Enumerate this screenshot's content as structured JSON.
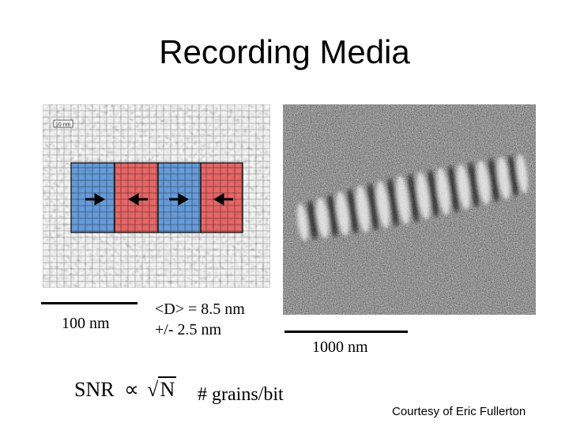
{
  "slide": {
    "title": "Recording Media",
    "scale_bar_left": "100 nm",
    "grain_size_line1": "<D> = 8.5 nm",
    "grain_size_line2": "+/- 2.5 nm",
    "scale_bar_right": "1000 nm",
    "snr_label": "SNR",
    "proportional_symbol": "∝",
    "sqrt_variable": "N",
    "grains_per_bit": "# grains/bit",
    "credit": "Courtesy of Eric Fullerton",
    "inset_scale_label": "10 nm"
  },
  "tem_image": {
    "bit_colors": [
      "#3a7fd0",
      "#e23a3a",
      "#3a7fd0",
      "#e23a3a"
    ],
    "arrow_directions": [
      "right",
      "left",
      "right",
      "left"
    ]
  },
  "colors": {
    "blue_bit": "#3a7fd0",
    "red_bit": "#e23a3a"
  }
}
